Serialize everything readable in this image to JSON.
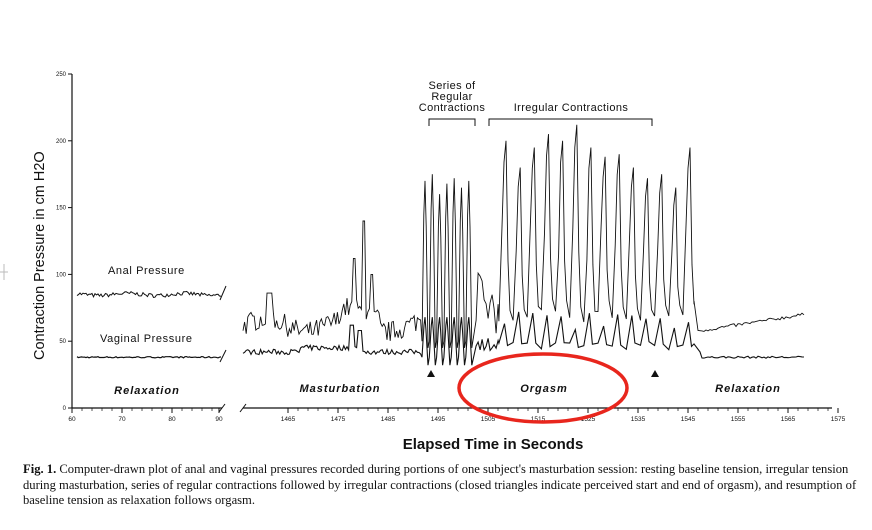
{
  "chart_data": {
    "type": "line",
    "xlabel": "Elapsed Time in Seconds",
    "ylabel": "Contraction Pressure in cm H2O",
    "ylim": [
      0,
      250
    ],
    "y_ticks": [
      0,
      50,
      100,
      150,
      200,
      250
    ],
    "x_ticks_left": [
      "60",
      "70",
      "80",
      "90"
    ],
    "x_ticks_right": [
      "1465",
      "1475",
      "1485",
      "1495",
      "1505",
      "1515",
      "1525",
      "1535",
      "1545",
      "1555",
      "1565",
      "1575"
    ],
    "series": [
      {
        "name": "Anal Pressure",
        "baseline_relaxation": 85,
        "baseline_masturbation": 70,
        "regular_peaks": [
          170,
          175,
          160,
          168,
          172,
          165,
          170
        ],
        "irregular_peaks": [
          200,
          180,
          195,
          205,
          200,
          212,
          195,
          188,
          190,
          180,
          172,
          175,
          165,
          195
        ],
        "end_level": 70
      },
      {
        "name": "Vaginal Pressure",
        "baseline_relaxation": 38,
        "baseline_masturbation": 42,
        "end_level": 38
      }
    ],
    "phases": [
      "Relaxation",
      "Masturbation",
      "Orgasm",
      "Relaxation"
    ],
    "annotations": {
      "regular": "Series of Regular Contractions",
      "irregular": "Irregular Contractions"
    },
    "triangle_markers_x": [
      1496,
      1541
    ]
  },
  "labels": {
    "anal": "Anal Pressure",
    "vaginal": "Vaginal Pressure",
    "regular_1": "Series of",
    "regular_2": "Regular",
    "regular_3": "Contractions",
    "irregular": "Irregular Contractions",
    "phase_relax_1": "Relaxation",
    "phase_mast": "Masturbation",
    "phase_orgasm": "Orgasm",
    "phase_relax_2": "Relaxation",
    "x_title": "Elapsed Time in Seconds",
    "y_title": "Contraction Pressure in cm H2O"
  },
  "caption": {
    "fig_label": "Fig. 1.",
    "text_1": " Computer-drawn plot of ",
    "highlight": "anal and vaginal pressures",
    "text_2": " recorded during portions of one subject's masturbation session: resting baseline tension, irregular tension during masturbation, series of regular contractions followed by irregular contractions (closed triangles indicate perceived start and end of orgasm), and resumption of baseline tension as relaxation follows orgasm."
  },
  "markup_colors": {
    "annotation": "#e8261d"
  }
}
